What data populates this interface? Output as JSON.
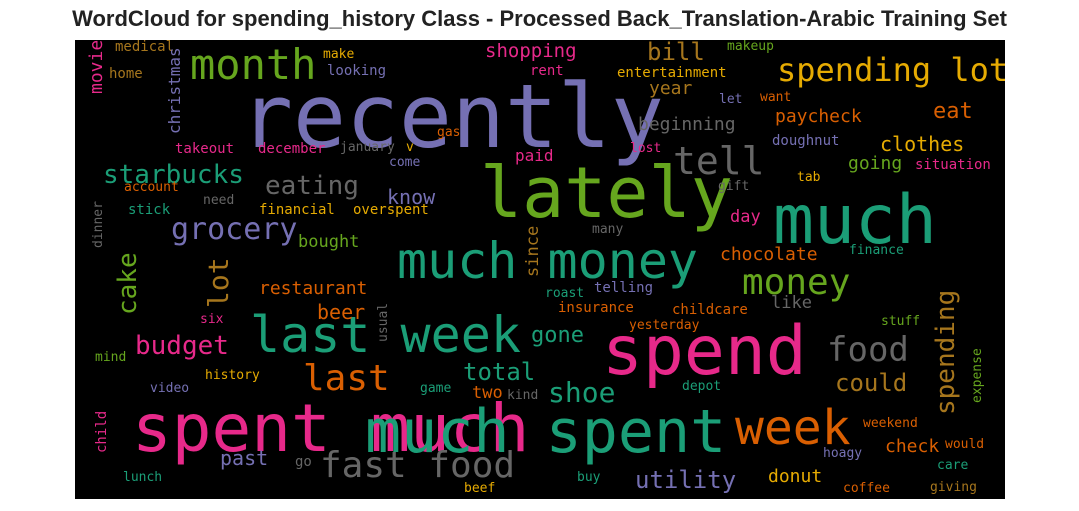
{
  "title": "WordCloud for spending_history Class - Processed Back_Translation-Arabic Training Set",
  "background": "#000000",
  "palette": {
    "purple": "#7570b3",
    "green": "#1b9e77",
    "lime": "#66a61e",
    "magenta": "#e7298a",
    "orange": "#d95f02",
    "gold": "#e6ab02",
    "brown": "#a6761d",
    "gray": "#666666"
  },
  "words": [
    {
      "text": "recently",
      "color": "#7570b3"
    },
    {
      "text": "lately",
      "color": "#66a61e"
    },
    {
      "text": "much",
      "color": "#1b9e77"
    },
    {
      "text": "spend",
      "color": "#e7298a"
    },
    {
      "text": "spent much",
      "color": "#e7298a"
    },
    {
      "text": "much spent",
      "color": "#1b9e77"
    },
    {
      "text": "much money",
      "color": "#1b9e77"
    },
    {
      "text": "last week",
      "color": "#1b9e77"
    },
    {
      "text": "month",
      "color": "#66a61e"
    },
    {
      "text": "spending lot",
      "color": "#e6ab02"
    },
    {
      "text": "tell",
      "color": "#666666"
    },
    {
      "text": "week",
      "color": "#d95f02"
    },
    {
      "text": "fast food",
      "color": "#666666"
    },
    {
      "text": "money",
      "color": "#66a61e"
    },
    {
      "text": "food",
      "color": "#666666"
    },
    {
      "text": "last",
      "color": "#d95f02"
    },
    {
      "text": "grocery",
      "color": "#7570b3"
    },
    {
      "text": "eating",
      "color": "#666666"
    },
    {
      "text": "starbucks",
      "color": "#1b9e77"
    },
    {
      "text": "bill",
      "color": "#a6761d"
    },
    {
      "text": "shopping",
      "color": "#e7298a"
    },
    {
      "text": "eat",
      "color": "#d95f02"
    },
    {
      "text": "clothes",
      "color": "#e6ab02"
    },
    {
      "text": "paycheck",
      "color": "#d95f02"
    },
    {
      "text": "beginning",
      "color": "#666666"
    },
    {
      "text": "year",
      "color": "#a6761d"
    },
    {
      "text": "going",
      "color": "#66a61e"
    },
    {
      "text": "know",
      "color": "#7570b3"
    },
    {
      "text": "budget",
      "color": "#e7298a"
    },
    {
      "text": "shoe",
      "color": "#1b9e77"
    },
    {
      "text": "total",
      "color": "#1b9e77"
    },
    {
      "text": "could",
      "color": "#a6761d"
    },
    {
      "text": "utility",
      "color": "#7570b3"
    },
    {
      "text": "gone",
      "color": "#1b9e77"
    },
    {
      "text": "beer",
      "color": "#d95f02"
    },
    {
      "text": "restaurant",
      "color": "#d95f02"
    },
    {
      "text": "chocolate",
      "color": "#d95f02"
    },
    {
      "text": "day",
      "color": "#e7298a"
    },
    {
      "text": "like",
      "color": "#666666"
    },
    {
      "text": "past",
      "color": "#7570b3"
    },
    {
      "text": "check",
      "color": "#d95f02"
    },
    {
      "text": "donut",
      "color": "#e6ab02"
    },
    {
      "text": "bought",
      "color": "#66a61e"
    },
    {
      "text": "two",
      "color": "#d95f02"
    },
    {
      "text": "paid",
      "color": "#e7298a"
    },
    {
      "text": "entertainment",
      "color": "#e6ab02"
    },
    {
      "text": "makeup",
      "color": "#66a61e"
    },
    {
      "text": "medical",
      "color": "#a6761d"
    },
    {
      "text": "make",
      "color": "#e6ab02"
    },
    {
      "text": "looking",
      "color": "#7570b3"
    },
    {
      "text": "home",
      "color": "#a6761d"
    },
    {
      "text": "rent",
      "color": "#e7298a"
    },
    {
      "text": "let",
      "color": "#7570b3"
    },
    {
      "text": "want",
      "color": "#d95f02"
    },
    {
      "text": "doughnut",
      "color": "#7570b3"
    },
    {
      "text": "takeout",
      "color": "#e7298a"
    },
    {
      "text": "december",
      "color": "#e7298a"
    },
    {
      "text": "january",
      "color": "#666666"
    },
    {
      "text": "v",
      "color": "#e6ab02"
    },
    {
      "text": "come",
      "color": "#7570b3"
    },
    {
      "text": "gas",
      "color": "#d95f02"
    },
    {
      "text": "lost",
      "color": "#e7298a"
    },
    {
      "text": "situation",
      "color": "#e7298a"
    },
    {
      "text": "tab",
      "color": "#e6ab02"
    },
    {
      "text": "gift",
      "color": "#666666"
    },
    {
      "text": "account",
      "color": "#d95f02"
    },
    {
      "text": "need",
      "color": "#666666"
    },
    {
      "text": "financial",
      "color": "#e6ab02"
    },
    {
      "text": "overspent",
      "color": "#e6ab02"
    },
    {
      "text": "stick",
      "color": "#1b9e77"
    },
    {
      "text": "many",
      "color": "#666666"
    },
    {
      "text": "finance",
      "color": "#1b9e77"
    },
    {
      "text": "roast",
      "color": "#1b9e77"
    },
    {
      "text": "telling",
      "color": "#7570b3"
    },
    {
      "text": "insurance",
      "color": "#d95f02"
    },
    {
      "text": "childcare",
      "color": "#d95f02"
    },
    {
      "text": "yesterday",
      "color": "#d95f02"
    },
    {
      "text": "stuff",
      "color": "#66a61e"
    },
    {
      "text": "six",
      "color": "#e7298a"
    },
    {
      "text": "mind",
      "color": "#66a61e"
    },
    {
      "text": "history",
      "color": "#e6ab02"
    },
    {
      "text": "video",
      "color": "#7570b3"
    },
    {
      "text": "game",
      "color": "#1b9e77"
    },
    {
      "text": "kind",
      "color": "#666666"
    },
    {
      "text": "depot",
      "color": "#1b9e77"
    },
    {
      "text": "weekend",
      "color": "#d95f02"
    },
    {
      "text": "would",
      "color": "#d95f02"
    },
    {
      "text": "hoagy",
      "color": "#7570b3"
    },
    {
      "text": "care",
      "color": "#1b9e77"
    },
    {
      "text": "go",
      "color": "#666666"
    },
    {
      "text": "lunch",
      "color": "#1b9e77"
    },
    {
      "text": "buy",
      "color": "#1b9e77"
    },
    {
      "text": "beef",
      "color": "#e6ab02"
    },
    {
      "text": "coffee",
      "color": "#d95f02"
    },
    {
      "text": "giving",
      "color": "#a6761d"
    },
    {
      "text": "movie",
      "color": "#e7298a"
    },
    {
      "text": "christmas",
      "color": "#7570b3"
    },
    {
      "text": "cake",
      "color": "#66a61e"
    },
    {
      "text": "lot",
      "color": "#a6761d"
    },
    {
      "text": "since",
      "color": "#a6761d"
    },
    {
      "text": "spending",
      "color": "#a6761d"
    },
    {
      "text": "expense",
      "color": "#66a61e"
    },
    {
      "text": "dinner",
      "color": "#666666"
    },
    {
      "text": "usual",
      "color": "#666666"
    },
    {
      "text": "child",
      "color": "#e7298a"
    }
  ]
}
